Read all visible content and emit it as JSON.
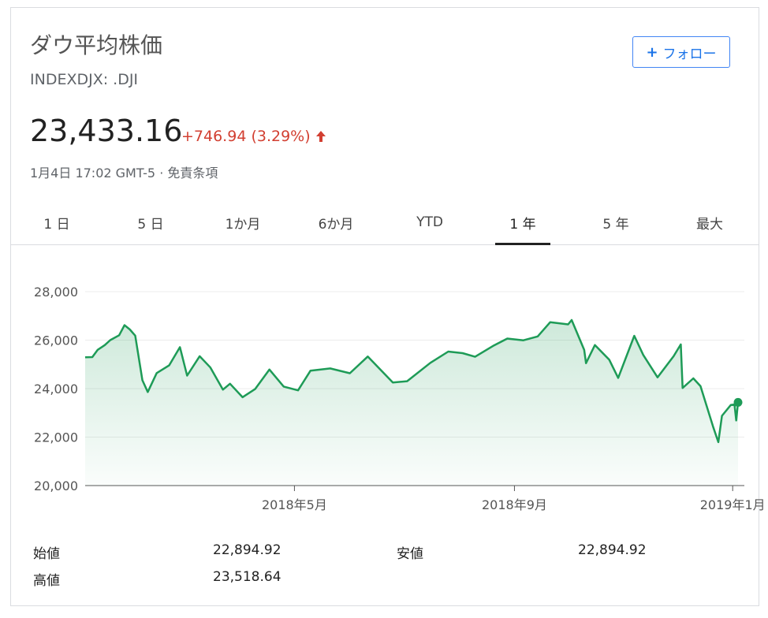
{
  "header": {
    "title": "ダウ平均株価",
    "ticker": "INDEXDJX: .DJI",
    "follow_label": "フォロー"
  },
  "quote": {
    "price": "23,433.16",
    "change": "+746.94 (3.29%)",
    "timestamp": "1月4日 17:02 GMT-5 · ",
    "disclaimer": "免責条項"
  },
  "tabs": [
    "1 日",
    "5 日",
    "1か月",
    "6か月",
    "YTD",
    "1 年",
    "5 年",
    "最大"
  ],
  "active_tab": 5,
  "colors": {
    "line": "#1e9b57",
    "up": "#d23f31",
    "accent": "#1a73e8"
  },
  "chart_data": {
    "type": "area",
    "ylim": [
      20000,
      28000
    ],
    "yticks": [
      20000,
      22000,
      24000,
      26000,
      28000
    ],
    "ytick_labels": [
      "20,000",
      "22,000",
      "24,000",
      "26,000",
      "28,000"
    ],
    "xtick_labels": [
      "2018年5月",
      "2018年9月",
      "2019年1月"
    ],
    "xtick_dates": [
      "2018-05-01",
      "2018-09-01",
      "2019-01-01"
    ],
    "x_range": [
      "2018-01-04",
      "2019-01-04"
    ],
    "grid": true,
    "series": [
      {
        "x": [
          "2018-01-04",
          "2018-01-08",
          "2018-01-11",
          "2018-01-15",
          "2018-01-18",
          "2018-01-23",
          "2018-01-26",
          "2018-01-29",
          "2018-02-01",
          "2018-02-05",
          "2018-02-08",
          "2018-02-13",
          "2018-02-20",
          "2018-02-26",
          "2018-03-02",
          "2018-03-09",
          "2018-03-15",
          "2018-03-22",
          "2018-03-26",
          "2018-04-02",
          "2018-04-09",
          "2018-04-17",
          "2018-04-25",
          "2018-05-03",
          "2018-05-10",
          "2018-05-21",
          "2018-06-01",
          "2018-06-11",
          "2018-06-25",
          "2018-07-03",
          "2018-07-16",
          "2018-07-26",
          "2018-08-03",
          "2018-08-10",
          "2018-08-20",
          "2018-08-28",
          "2018-09-06",
          "2018-09-14",
          "2018-09-21",
          "2018-10-01",
          "2018-10-03",
          "2018-10-10",
          "2018-10-11",
          "2018-10-16",
          "2018-10-24",
          "2018-10-29",
          "2018-11-07",
          "2018-11-12",
          "2018-11-20",
          "2018-11-29",
          "2018-12-03",
          "2018-12-04",
          "2018-12-10",
          "2018-12-14",
          "2018-12-21",
          "2018-12-24",
          "2018-12-26",
          "2018-12-31",
          "2019-01-02",
          "2019-01-03",
          "2019-01-04"
        ],
        "values": [
          25295,
          25300,
          25600,
          25800,
          26000,
          26200,
          26617,
          26440,
          26186,
          24345,
          23860,
          24640,
          24964,
          25710,
          24538,
          25336,
          24873,
          23957,
          24202,
          23644,
          23979,
          24786,
          24083,
          23930,
          24740,
          24834,
          24635,
          25322,
          24252,
          24307,
          25064,
          25527,
          25463,
          25313,
          25758,
          26064,
          25995,
          26154,
          26743,
          26651,
          26828,
          25598,
          25052,
          25798,
          25191,
          24442,
          26180,
          25387,
          24465,
          25338,
          25826,
          24027,
          24423,
          24100,
          22445,
          21792,
          22878,
          23327,
          23346,
          22686,
          23433
        ]
      }
    ]
  },
  "stats": [
    {
      "label": "始値",
      "value": "22,894.92"
    },
    {
      "label": "安値",
      "value": "22,894.92"
    },
    {
      "label": "高値",
      "value": "23,518.64"
    }
  ]
}
